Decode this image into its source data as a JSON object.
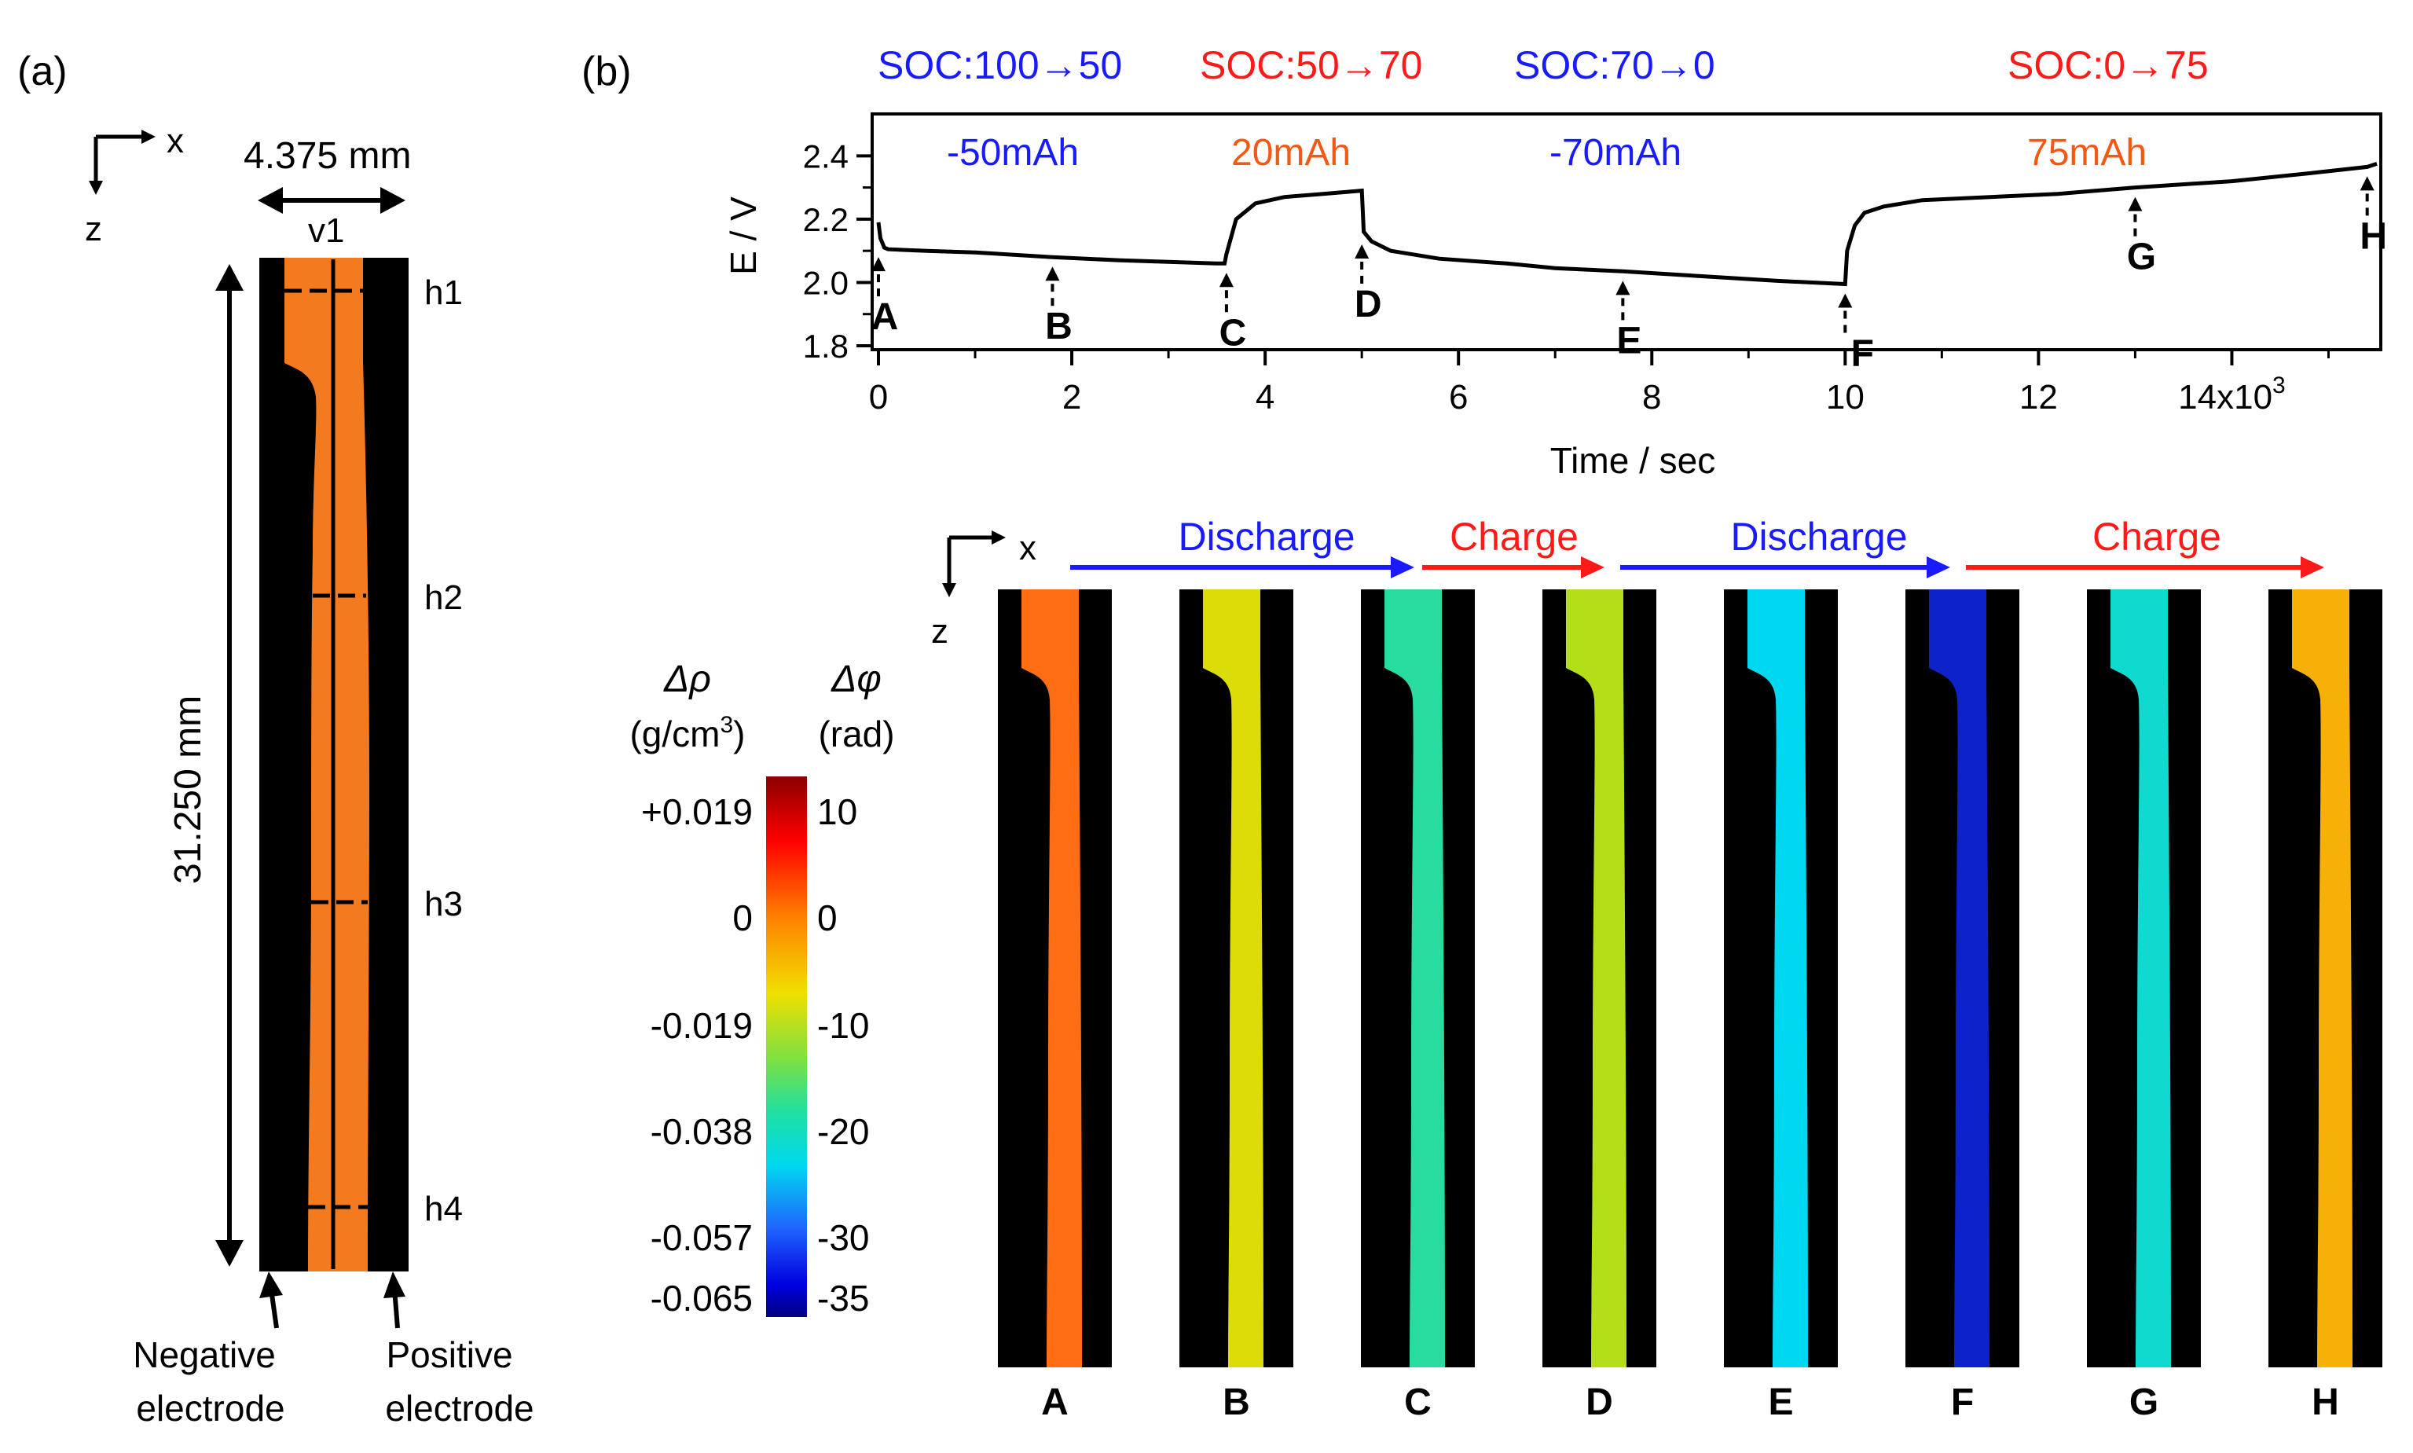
{
  "panel_a": {
    "label": "(a)",
    "axis_x": "x",
    "axis_z": "z",
    "width_dim": "4.375 mm",
    "height_dim": "31.250 mm",
    "v_label": "v1",
    "h_labels": [
      "h1",
      "h2",
      "h3",
      "h4"
    ],
    "negative_electrode": [
      "Negative",
      "electrode"
    ],
    "positive_electrode": [
      "Positive",
      "electrode"
    ],
    "electrolyte_color": "#f47a1f"
  },
  "panel_b": {
    "label": "(b)",
    "soc_labels": [
      {
        "text": "SOC:100→50",
        "color": "#1a1aff"
      },
      {
        "text": "SOC:50→70",
        "color": "#ff1a1a"
      },
      {
        "text": "SOC:70→0",
        "color": "#1a1aff"
      },
      {
        "text": "SOC:0→75",
        "color": "#ff1a1a"
      }
    ],
    "capacity_labels": [
      {
        "text": "-50mAh",
        "color": "#1a1aff"
      },
      {
        "text": "20mAh",
        "color": "#f05a14"
      },
      {
        "text": "-70mAh",
        "color": "#1a1aff"
      },
      {
        "text": "75mAh",
        "color": "#f05a14"
      }
    ],
    "process_arrows": [
      {
        "text": "Discharge",
        "color": "#1a1aff"
      },
      {
        "text": "Charge",
        "color": "#ff1a1a"
      },
      {
        "text": "Discharge",
        "color": "#1a1aff"
      },
      {
        "text": "Charge",
        "color": "#ff1a1a"
      }
    ],
    "axis_x": "x",
    "axis_z": "z",
    "snapshots": [
      {
        "label": "A",
        "phase": 0.0
      },
      {
        "label": "B",
        "phase": -6
      },
      {
        "label": "C",
        "phase": -15
      },
      {
        "label": "D",
        "phase": -8
      },
      {
        "label": "E",
        "phase": -20
      },
      {
        "label": "F",
        "phase": -32
      },
      {
        "label": "G",
        "phase": -18
      },
      {
        "label": "H",
        "phase": -3
      }
    ]
  },
  "colorbar": {
    "rho_title": "Δρ",
    "rho_unit": "(g/cm",
    "rho_unit_sup": "3",
    "rho_unit_close": ")",
    "phi_title": "Δφ",
    "phi_unit": "(rad)",
    "rho_ticks": [
      "+0.019",
      "0",
      "-0.019",
      "-0.038",
      "-0.057",
      "-0.065"
    ],
    "phi_ticks": [
      "10",
      "0",
      "-10",
      "-20",
      "-30",
      "-35"
    ]
  },
  "chart_data": {
    "type": "line",
    "xlabel": "Time / sec",
    "ylabel": "E / V",
    "xlim": [
      0,
      15500
    ],
    "ylim": [
      1.8,
      2.52
    ],
    "x_ticks": [
      "0",
      "2",
      "4",
      "6",
      "8",
      "10",
      "12",
      "14x10"
    ],
    "x_tick_exp": "3",
    "x_tick_values": [
      0,
      2000,
      4000,
      6000,
      8000,
      10000,
      12000,
      14000
    ],
    "y_ticks": [
      "1.8",
      "2.0",
      "2.2",
      "2.4"
    ],
    "y_tick_values": [
      1.8,
      2.0,
      2.2,
      2.4
    ],
    "series": [
      {
        "name": "E",
        "x": [
          0,
          20,
          60,
          100,
          500,
          1000,
          1800,
          2500,
          3000,
          3500,
          3580,
          3600,
          3700,
          3900,
          4200,
          4600,
          5000,
          5020,
          5100,
          5300,
          5800,
          6500,
          7000,
          7700,
          8500,
          9300,
          10000,
          10020,
          10100,
          10200,
          10400,
          10800,
          11500,
          12200,
          13000,
          14000,
          14800,
          15400,
          15500
        ],
        "y": [
          2.19,
          2.14,
          2.11,
          2.105,
          2.1,
          2.095,
          2.08,
          2.07,
          2.065,
          2.06,
          2.06,
          2.09,
          2.2,
          2.25,
          2.27,
          2.28,
          2.29,
          2.16,
          2.13,
          2.1,
          2.075,
          2.06,
          2.045,
          2.035,
          2.02,
          2.005,
          1.995,
          2.1,
          2.18,
          2.22,
          2.24,
          2.26,
          2.27,
          2.28,
          2.3,
          2.32,
          2.345,
          2.365,
          2.375
        ]
      }
    ],
    "markers": [
      {
        "label": "A",
        "x": 0,
        "y": 2.11
      },
      {
        "label": "B",
        "x": 1800,
        "y": 2.08
      },
      {
        "label": "C",
        "x": 3600,
        "y": 2.06
      },
      {
        "label": "D",
        "x": 5000,
        "y": 2.15
      },
      {
        "label": "E",
        "x": 7700,
        "y": 2.035
      },
      {
        "label": "F",
        "x": 10000,
        "y": 1.995
      },
      {
        "label": "G",
        "x": 13000,
        "y": 2.3
      },
      {
        "label": "H",
        "x": 15400,
        "y": 2.365
      }
    ]
  }
}
